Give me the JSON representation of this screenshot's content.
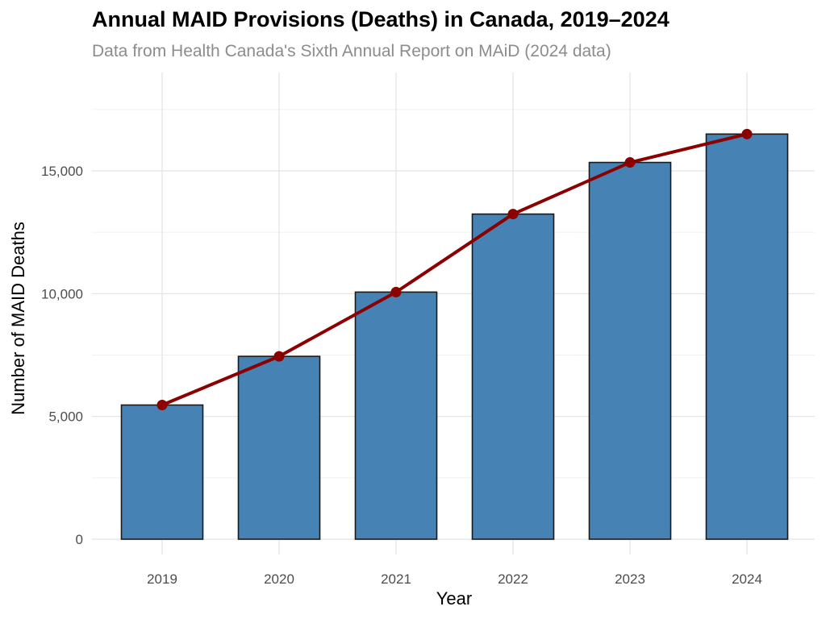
{
  "chart_data": {
    "type": "bar",
    "title": "Annual MAID Provisions (Deaths) in Canada, 2019–2024",
    "subtitle": "Data from Health Canada's Sixth Annual Report on MAiD (2024 data)",
    "xlabel": "Year",
    "ylabel": "Number of MAID Deaths",
    "categories": [
      "2019",
      "2020",
      "2021",
      "2022",
      "2023",
      "2024"
    ],
    "values": [
      5465,
      7446,
      10064,
      13241,
      15343,
      16499
    ],
    "ylim": [
      0,
      18000
    ],
    "y_ticks": [
      0,
      5000,
      10000,
      15000
    ],
    "y_tick_labels": [
      "0",
      "5,000",
      "10,000",
      "15,000"
    ],
    "grid": true,
    "legend": "none",
    "series": [
      {
        "name": "MAID deaths (bars)",
        "type": "bar",
        "values": [
          5465,
          7446,
          10064,
          13241,
          15343,
          16499
        ]
      },
      {
        "name": "MAID deaths (trend line)",
        "type": "line",
        "values": [
          5465,
          7446,
          10064,
          13241,
          15343,
          16499
        ]
      }
    ],
    "colors": {
      "bar_fill": "#4682b4",
      "bar_stroke": "#1a1a1a",
      "line": "#8b0000"
    }
  }
}
